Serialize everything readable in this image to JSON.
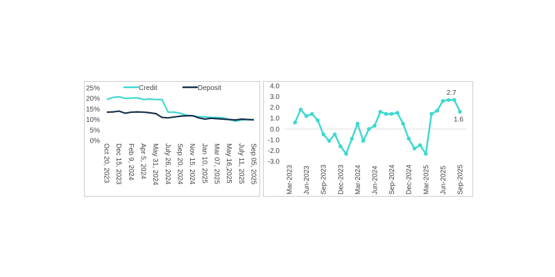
{
  "chart_data": [
    {
      "type": "line",
      "ylim": [
        0,
        25
      ],
      "yticks": [
        "25%",
        "20%",
        "15%",
        "10%",
        "5%",
        "0%"
      ],
      "ytick_values": [
        25,
        20,
        15,
        10,
        5,
        0
      ],
      "xtick_labels": [
        "Oct 20, 2023",
        "Dec 15, 2023",
        "Feb 9, 2024",
        "Apr 5, 2024",
        "May 31, 2024",
        "July 26, 2024",
        "Sep 20, 2024",
        "Nov 15, 2024",
        "Jan 10, 2025",
        "Mar 07, 2025",
        "May 16,2025",
        "July 11, 2025",
        "Sep 05, 2025"
      ],
      "legend": "top",
      "grid": false,
      "series": [
        {
          "name": "Credit",
          "color": "#3dd9d0",
          "values": [
            19.5,
            20.5,
            20.8,
            20,
            20.2,
            20.3,
            19.5,
            19.8,
            19.5,
            19.5,
            13.5,
            13.5,
            13,
            12,
            11.8,
            11.3,
            11.3,
            11,
            11,
            10.8,
            10,
            9.2,
            9.8,
            10,
            10
          ]
        },
        {
          "name": "Deposit",
          "color": "#15304a",
          "values": [
            13.5,
            13.6,
            14,
            13,
            13.5,
            13.6,
            13.5,
            13.2,
            12.8,
            11,
            10.8,
            11.2,
            11.6,
            11.8,
            11.8,
            10.8,
            10.2,
            10.6,
            10.4,
            10.2,
            10,
            9.8,
            10.2,
            10,
            9.8
          ]
        }
      ]
    },
    {
      "type": "line",
      "ylim": [
        -3,
        4
      ],
      "yticks": [
        "4.0",
        "3.0",
        "2.0",
        "1.0",
        "0.0",
        "-1.0",
        "-2.0",
        "-3.0"
      ],
      "ytick_values": [
        4,
        3,
        2,
        1,
        0,
        -1,
        -2,
        -3
      ],
      "xtick_labels": [
        "Mar-2023",
        "Jun-2023",
        "Sep-2023",
        "Dec-2023",
        "Mar-2024",
        "Jun-2024",
        "Sep-2024",
        "Dec-2024",
        "Mar-2025",
        "Jun-2025",
        "Sep-2025"
      ],
      "x_start": "Apr-2023",
      "x_end": "Sep-2025",
      "color": "#3dd9d0",
      "values": [
        0.6,
        1.8,
        1.2,
        1.4,
        0.8,
        -0.5,
        -1.1,
        -0.5,
        -1.6,
        -2.3,
        -0.9,
        0.5,
        -1.1,
        0.0,
        0.3,
        1.6,
        1.4,
        1.4,
        1.5,
        0.5,
        -0.9,
        -1.8,
        -1.5,
        -2.3,
        1.4,
        1.7,
        2.6,
        2.7,
        2.7,
        1.6
      ],
      "data_labels": [
        {
          "index": 28,
          "text": "2.7"
        },
        {
          "index": 29,
          "text": "1.6"
        }
      ]
    }
  ]
}
